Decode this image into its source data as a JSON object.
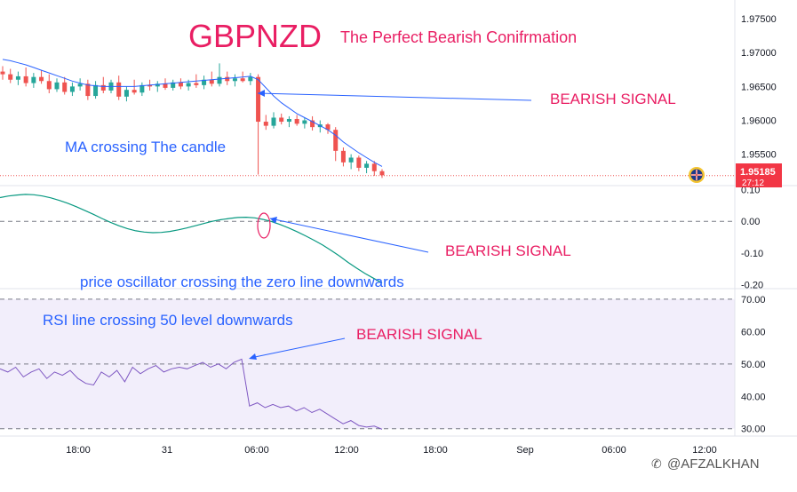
{
  "chart_data": [
    {
      "panel": "price",
      "type": "candlestick",
      "title": "GBPNZD",
      "subtitle": "The Perfect Bearish Conifrmation",
      "symbol": "GBPNZD",
      "ylim": [
        1.9505,
        1.9775
      ],
      "ticks": [
        "1.97500",
        "1.97000",
        "1.96500",
        "1.96000",
        "1.95500"
      ],
      "current_price": "1.95185",
      "countdown": "27:12",
      "candles": [
        [
          1.9672,
          1.968,
          1.966,
          1.9668
        ],
        [
          1.9668,
          1.9676,
          1.9655,
          1.966
        ],
        [
          1.966,
          1.9672,
          1.9652,
          1.9665
        ],
        [
          1.9665,
          1.9678,
          1.965,
          1.9655
        ],
        [
          1.9655,
          1.967,
          1.9648,
          1.9664
        ],
        [
          1.9664,
          1.9674,
          1.9654,
          1.9658
        ],
        [
          1.9658,
          1.9668,
          1.964,
          1.9646
        ],
        [
          1.9646,
          1.9662,
          1.9642,
          1.9656
        ],
        [
          1.9656,
          1.9664,
          1.9638,
          1.9642
        ],
        [
          1.9642,
          1.9656,
          1.9636,
          1.965
        ],
        [
          1.965,
          1.9662,
          1.9644,
          1.9654
        ],
        [
          1.9654,
          1.966,
          1.963,
          1.9636
        ],
        [
          1.9636,
          1.9658,
          1.9632,
          1.9652
        ],
        [
          1.9652,
          1.9664,
          1.964,
          1.9644
        ],
        [
          1.9644,
          1.966,
          1.964,
          1.9656
        ],
        [
          1.9656,
          1.9666,
          1.963,
          1.9635
        ],
        [
          1.9635,
          1.965,
          1.9628,
          1.9645
        ],
        [
          1.9645,
          1.966,
          1.9638,
          1.9641
        ],
        [
          1.9641,
          1.9656,
          1.9636,
          1.9652
        ],
        [
          1.9652,
          1.966,
          1.9644,
          1.965
        ],
        [
          1.965,
          1.9658,
          1.9642,
          1.9654
        ],
        [
          1.9654,
          1.9662,
          1.9645,
          1.9648
        ],
        [
          1.9648,
          1.966,
          1.9644,
          1.9656
        ],
        [
          1.9656,
          1.9662,
          1.9646,
          1.965
        ],
        [
          1.965,
          1.966,
          1.9644,
          1.9655
        ],
        [
          1.9655,
          1.9668,
          1.9648,
          1.9652
        ],
        [
          1.9652,
          1.9666,
          1.9646,
          1.966
        ],
        [
          1.966,
          1.9672,
          1.965,
          1.9654
        ],
        [
          1.9654,
          1.9684,
          1.965,
          1.9664
        ],
        [
          1.9664,
          1.9672,
          1.9652,
          1.9658
        ],
        [
          1.9658,
          1.9668,
          1.965,
          1.9662
        ],
        [
          1.9662,
          1.9672,
          1.9656,
          1.9658
        ],
        [
          1.9658,
          1.967,
          1.9652,
          1.9664
        ],
        [
          1.9664,
          1.9668,
          1.952,
          1.9598
        ],
        [
          1.9598,
          1.9608,
          1.9586,
          1.9592
        ],
        [
          1.9592,
          1.9612,
          1.9588,
          1.9604
        ],
        [
          1.9604,
          1.961,
          1.9594,
          1.9598
        ],
        [
          1.9598,
          1.9606,
          1.959,
          1.9602
        ],
        [
          1.9602,
          1.9608,
          1.9592,
          1.9595
        ],
        [
          1.9595,
          1.9604,
          1.9588,
          1.96
        ],
        [
          1.96,
          1.9606,
          1.9585,
          1.959
        ],
        [
          1.959,
          1.96,
          1.9582,
          1.9594
        ],
        [
          1.9594,
          1.9596,
          1.958,
          1.9586
        ],
        [
          1.9586,
          1.959,
          1.954,
          1.9555
        ],
        [
          1.9555,
          1.956,
          1.9532,
          1.9538
        ],
        [
          1.9538,
          1.955,
          1.9528,
          1.9545
        ],
        [
          1.9545,
          1.9548,
          1.9525,
          1.953
        ],
        [
          1.953,
          1.954,
          1.9522,
          1.9536
        ],
        [
          1.9536,
          1.954,
          1.9518,
          1.9525
        ],
        [
          1.9525,
          1.9528,
          1.9515,
          1.9519
        ]
      ],
      "ma": [
        1.969,
        1.9688,
        1.9685,
        1.9682,
        1.9678,
        1.9674,
        1.967,
        1.9666,
        1.9662,
        1.9658,
        1.9655,
        1.9652,
        1.9651,
        1.965,
        1.965,
        1.965,
        1.965,
        1.965,
        1.9651,
        1.9652,
        1.9653,
        1.9654,
        1.9655,
        1.9656,
        1.9657,
        1.9658,
        1.9659,
        1.966,
        1.9661,
        1.9662,
        1.9663,
        1.9664,
        1.9665,
        1.966,
        1.9648,
        1.9636,
        1.9626,
        1.9618,
        1.961,
        1.9604,
        1.9598,
        1.9592,
        1.9586,
        1.9578,
        1.9568,
        1.956,
        1.9552,
        1.9545,
        1.9538,
        1.9532
      ],
      "annotations": [
        {
          "text": "BEARISH SIGNAL"
        },
        {
          "text": "MA crossing The candle"
        }
      ]
    },
    {
      "panel": "oscillator",
      "type": "line",
      "ylim": [
        -0.21,
        0.11
      ],
      "ticks": [
        "0.10",
        "0.00",
        "-0.10",
        "-0.20"
      ],
      "zero_line": 0.0,
      "values": [
        0.075,
        0.08,
        0.083,
        0.085,
        0.084,
        0.08,
        0.074,
        0.066,
        0.057,
        0.046,
        0.034,
        0.022,
        0.009,
        -0.003,
        -0.014,
        -0.023,
        -0.03,
        -0.034,
        -0.036,
        -0.035,
        -0.032,
        -0.027,
        -0.021,
        -0.014,
        -0.007,
        0.0,
        0.005,
        0.009,
        0.012,
        0.013,
        0.011,
        0.006,
        -0.001,
        -0.01,
        -0.021,
        -0.033,
        -0.046,
        -0.06,
        -0.075,
        -0.092,
        -0.11,
        -0.13,
        -0.148,
        -0.165,
        -0.18,
        -0.195
      ],
      "annotations": [
        {
          "text": "BEARISH SIGNAL"
        },
        {
          "text": "price oscillator crossing the zero line downwards"
        }
      ]
    },
    {
      "panel": "rsi",
      "type": "line",
      "ylim": [
        28,
        73
      ],
      "ticks": [
        "70.00",
        "60.00",
        "50.00",
        "40.00",
        "30.00"
      ],
      "band": [
        30,
        70
      ],
      "midline": 50,
      "values": [
        48.5,
        47.5,
        49.0,
        46.0,
        47.5,
        48.5,
        45.5,
        47.5,
        46.5,
        48.0,
        45.5,
        44.0,
        43.5,
        47.5,
        46.0,
        48.0,
        44.5,
        49.0,
        47.0,
        48.5,
        49.5,
        47.5,
        48.5,
        49.0,
        48.5,
        49.5,
        50.5,
        49.0,
        50.0,
        48.5,
        50.5,
        51.5,
        37.0,
        38.0,
        36.5,
        37.5,
        36.5,
        37.0,
        35.5,
        36.5,
        35.0,
        36.0,
        34.5,
        33.0,
        31.5,
        32.5,
        31.0,
        30.5,
        30.8,
        29.8
      ],
      "annotations": [
        {
          "text": "BEARISH SIGNAL"
        },
        {
          "text": "RSI line crossing 50 level downwards"
        }
      ]
    }
  ],
  "x_axis": {
    "ticks": [
      "18:00",
      "31",
      "06:00",
      "12:00",
      "18:00",
      "Sep",
      "06:00",
      "12:00"
    ]
  },
  "watermark": "@AFZALKHAN",
  "colors": {
    "up": "#26a69a",
    "down": "#ef5350",
    "ma": "#2962ff",
    "oscillator": "#089981",
    "rsi": "#7e57c2",
    "rsi_band": "#f2eefb",
    "annotation_red": "#e91e63",
    "annotation_blue": "#2962ff",
    "price_tag": "#f23645"
  }
}
